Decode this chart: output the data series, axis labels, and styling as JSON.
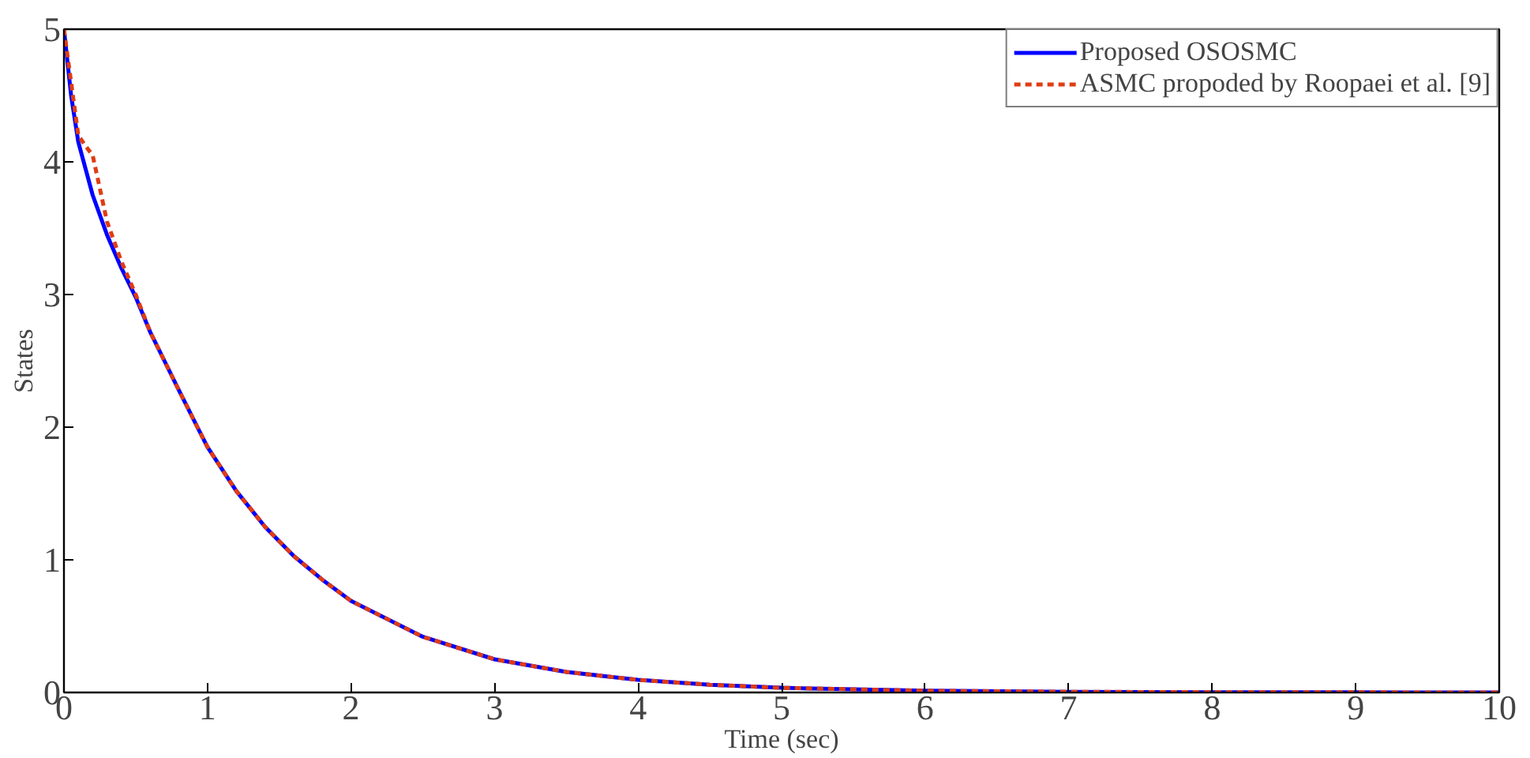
{
  "chart_data": {
    "type": "line",
    "xlabel": "Time (sec)",
    "ylabel": "States",
    "xlim": [
      0,
      10
    ],
    "ylim": [
      0,
      5
    ],
    "xticks": [
      0,
      1,
      2,
      3,
      4,
      5,
      6,
      7,
      8,
      9,
      10
    ],
    "yticks": [
      0,
      1,
      2,
      3,
      4,
      5
    ],
    "grid": false,
    "legend": "top right",
    "series": [
      {
        "name": "Proposed OSOSMC",
        "color": "#0000ff",
        "line_style": "solid",
        "x": [
          0,
          0.05,
          0.1,
          0.2,
          0.3,
          0.4,
          0.5,
          0.6,
          0.7,
          0.8,
          1,
          1.2,
          1.4,
          1.6,
          1.8,
          2,
          2.5,
          3,
          3.5,
          4,
          4.5,
          5,
          6,
          7,
          8,
          9,
          10
        ],
        "values": [
          5,
          4.5,
          4.15,
          3.75,
          3.45,
          3.2,
          2.98,
          2.72,
          2.5,
          2.28,
          1.85,
          1.52,
          1.25,
          1.03,
          0.85,
          0.69,
          0.42,
          0.25,
          0.155,
          0.095,
          0.058,
          0.035,
          0.013,
          0.005,
          0.002,
          0.001,
          0
        ]
      },
      {
        "name": "ASMC propoded by Roopaei et al. [9]",
        "color": "#e03c14",
        "line_style": "dashed",
        "x": [
          0,
          0.05,
          0.1,
          0.15,
          0.2,
          0.3,
          0.4,
          0.5,
          0.6,
          0.7,
          0.8,
          1,
          1.2,
          1.4,
          1.6,
          1.8,
          2,
          2.5,
          3,
          3.5,
          4,
          4.5,
          5,
          6,
          7,
          8,
          9,
          10
        ],
        "values": [
          5,
          4.6,
          4.2,
          4.12,
          4.05,
          3.55,
          3.25,
          3.0,
          2.72,
          2.5,
          2.28,
          1.85,
          1.52,
          1.25,
          1.03,
          0.85,
          0.69,
          0.42,
          0.25,
          0.155,
          0.095,
          0.058,
          0.035,
          0.013,
          0.005,
          0.002,
          0.001,
          0
        ]
      }
    ]
  }
}
